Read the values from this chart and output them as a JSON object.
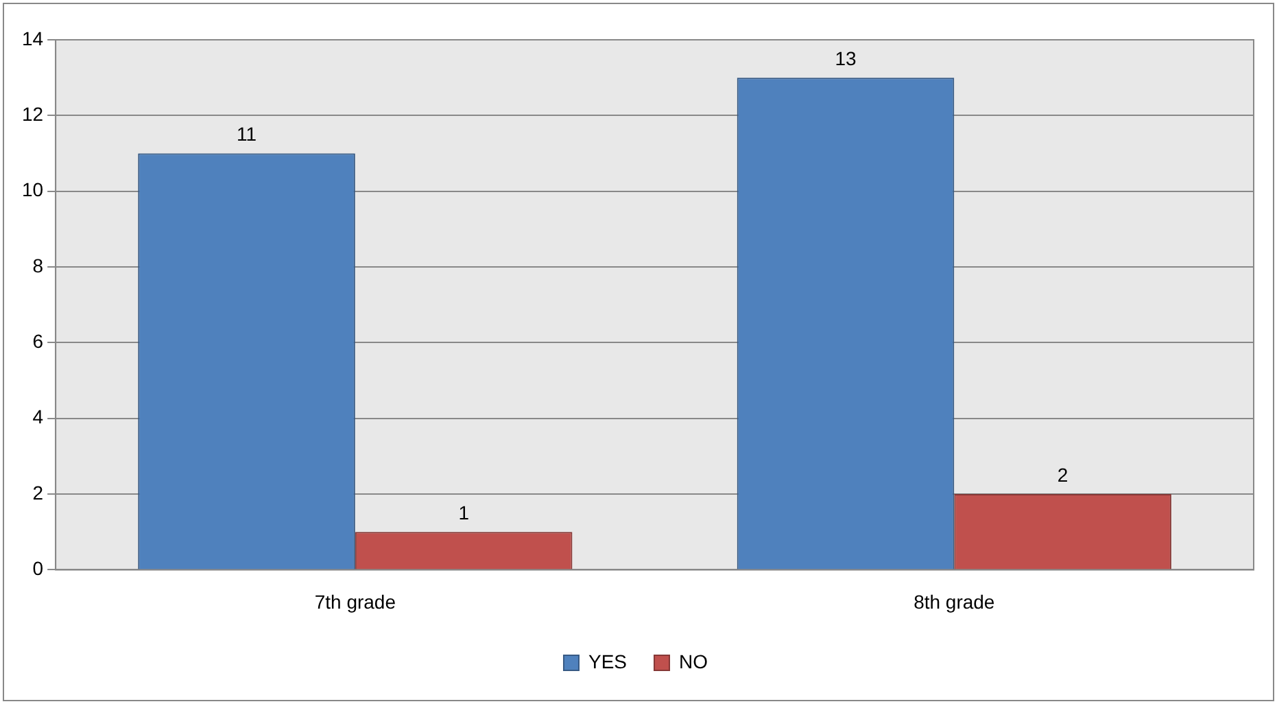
{
  "chart_data": {
    "type": "bar",
    "categories": [
      "7th grade",
      "8th grade"
    ],
    "series": [
      {
        "name": "YES",
        "color": "#4f81bd",
        "values": [
          11,
          13
        ]
      },
      {
        "name": "NO",
        "color": "#c0504d",
        "values": [
          1,
          2
        ]
      }
    ],
    "ylim": [
      0,
      14
    ],
    "yticks": [
      0,
      2,
      4,
      6,
      8,
      10,
      12,
      14
    ],
    "grid": "y",
    "legend": "bottom",
    "data_labels": true
  }
}
